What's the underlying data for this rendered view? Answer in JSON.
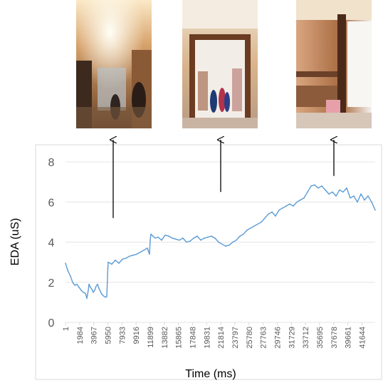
{
  "photos": [
    {
      "name": "store-interior-photo-1",
      "at_ms": 5950
    },
    {
      "name": "store-doorway-photo-2",
      "at_ms": 21814
    },
    {
      "name": "store-window-photo-3",
      "at_ms": 35695
    }
  ],
  "chart_data": {
    "type": "line",
    "title": "",
    "xlabel": "Time (ms)",
    "ylabel": "EDA (uS)",
    "ylim": [
      0,
      8
    ],
    "yticks": [
      "0",
      "2",
      "4",
      "6",
      "8"
    ],
    "xlim": [
      1,
      43500
    ],
    "xticks": [
      "1",
      "1984",
      "3967",
      "5950",
      "7933",
      "9916",
      "11899",
      "13882",
      "15865",
      "17848",
      "19831",
      "21814",
      "23797",
      "25780",
      "27763",
      "29746",
      "31729",
      "33712",
      "35695",
      "37678",
      "39661",
      "41644"
    ],
    "grid": true,
    "line_color": "#5b9bd5",
    "series": [
      {
        "x": [
          1,
          300,
          700,
          1000,
          1300,
          1600,
          1900,
          2200,
          2500,
          2800,
          3000,
          3200,
          3300,
          3500,
          3700,
          3900,
          4100,
          4300,
          4500,
          4700,
          4900,
          5100,
          5400,
          5650,
          5800,
          5950,
          6000,
          6500,
          7000,
          7500,
          8000,
          8500,
          9000,
          9500,
          10000,
          10500,
          11000,
          11500,
          11800,
          11899,
          12000,
          12300,
          12600,
          13000,
          13500,
          14000,
          14500,
          15000,
          15500,
          16000,
          16500,
          17000,
          17500,
          18000,
          18500,
          19000,
          19500,
          20000,
          20500,
          21000,
          21500,
          22000,
          22500,
          23000,
          23500,
          24000,
          24500,
          25000,
          25500,
          26000,
          26500,
          27000,
          27500,
          28000,
          28500,
          29000,
          29500,
          30000,
          30500,
          31000,
          31500,
          32000,
          32500,
          33000,
          33500,
          34000,
          34500,
          35000,
          35500,
          36000,
          36500,
          37000,
          37500,
          38000,
          38500,
          39000,
          39500,
          40000,
          40500,
          41000,
          41500,
          42000,
          42500,
          43000,
          43500
        ],
        "y": [
          2.95,
          2.6,
          2.3,
          2.0,
          1.85,
          1.9,
          1.75,
          1.6,
          1.5,
          1.45,
          1.2,
          1.6,
          1.9,
          1.75,
          1.65,
          1.5,
          1.6,
          1.8,
          1.9,
          1.7,
          1.55,
          1.4,
          1.3,
          1.25,
          1.3,
          2.7,
          3.0,
          2.9,
          3.1,
          2.95,
          3.15,
          3.2,
          3.3,
          3.35,
          3.4,
          3.5,
          3.6,
          3.7,
          3.4,
          4.1,
          4.4,
          4.3,
          4.2,
          4.25,
          4.1,
          4.35,
          4.3,
          4.2,
          4.15,
          4.1,
          4.2,
          4.0,
          4.05,
          4.2,
          4.3,
          4.1,
          4.2,
          4.25,
          4.3,
          4.2,
          4.0,
          3.9,
          3.8,
          3.85,
          4.0,
          4.1,
          4.3,
          4.4,
          4.6,
          4.7,
          4.8,
          4.9,
          5.0,
          5.2,
          5.4,
          5.5,
          5.3,
          5.6,
          5.7,
          5.8,
          5.9,
          5.8,
          6.0,
          6.1,
          6.2,
          6.5,
          6.8,
          6.85,
          6.7,
          6.8,
          6.6,
          6.4,
          6.5,
          6.3,
          6.6,
          6.5,
          6.7,
          6.2,
          6.3,
          6.0,
          6.4,
          6.1,
          6.3,
          6.0,
          5.6
        ]
      }
    ],
    "annotations": [
      {
        "type": "arrow",
        "x": 5950,
        "from_y": 5.2,
        "to_y": 8.2,
        "points_to": "store-interior-photo-1"
      },
      {
        "type": "arrow",
        "x": 21814,
        "from_y": 6.5,
        "to_y": 8.2,
        "points_to": "store-doorway-photo-2"
      },
      {
        "type": "arrow",
        "x": 35695,
        "from_y": 7.3,
        "to_y": 8.2,
        "points_to": "store-window-photo-3"
      }
    ]
  }
}
